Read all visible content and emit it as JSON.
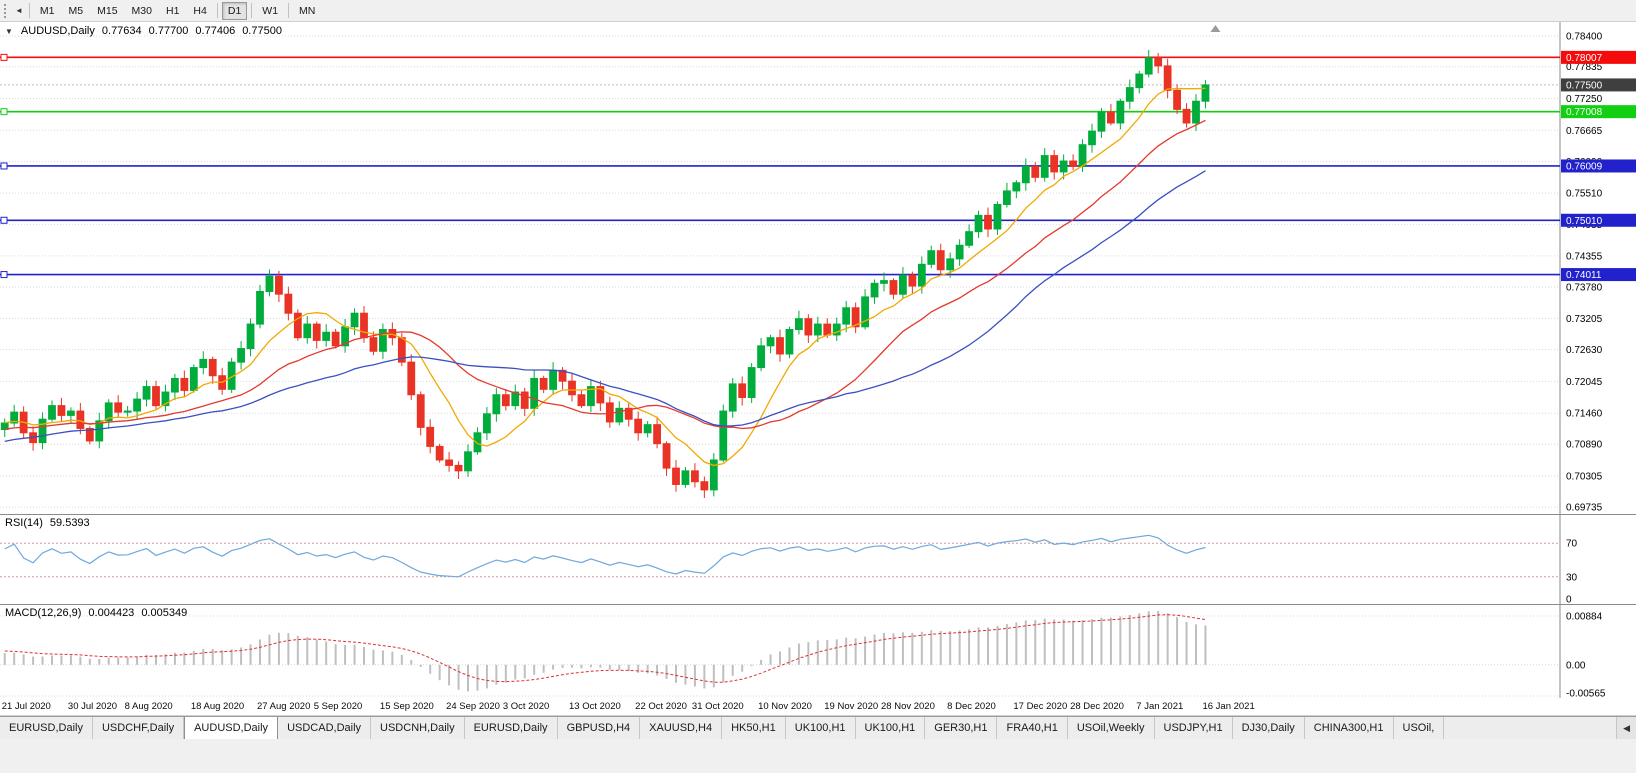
{
  "icons": {
    "collapse": "▼",
    "tab_scroll": "◀",
    "toolbar_scroll": "◄"
  },
  "toolbar": {
    "timeframes": [
      {
        "label": "M1",
        "active": false
      },
      {
        "label": "M5",
        "active": false
      },
      {
        "label": "M15",
        "active": false
      },
      {
        "label": "M30",
        "active": false
      },
      {
        "label": "H1",
        "active": false
      },
      {
        "label": "H4",
        "active": false,
        "gap_after": true
      },
      {
        "label": "D1",
        "active": true,
        "gap_after": true
      },
      {
        "label": "W1",
        "active": false,
        "gap_after": true
      },
      {
        "label": "MN",
        "active": false
      }
    ]
  },
  "chart_header": {
    "symbol_period": "AUDUSD,Daily",
    "open": "0.77634",
    "high": "0.77700",
    "low": "0.77406",
    "close": "0.77500"
  },
  "price_axis": {
    "max": 0.784,
    "min": 0.69735,
    "labels": [
      "0.78400",
      "0.77835",
      "0.77250",
      "0.76665",
      "0.76090",
      "0.75510",
      "0.74935",
      "0.74355",
      "0.73780",
      "0.73205",
      "0.72630",
      "0.72045",
      "0.71460",
      "0.70890",
      "0.70305",
      "0.69735"
    ],
    "current": {
      "label": "0.77500",
      "price": 0.775,
      "bg": "#3f3f3f"
    }
  },
  "hlines": [
    {
      "price": 0.78007,
      "label": "0.78007",
      "color": "#f40b0b"
    },
    {
      "price": 0.77008,
      "label": "0.77008",
      "color": "#12cf12"
    },
    {
      "price": 0.76009,
      "label": "0.76009",
      "color": "#2222cc"
    },
    {
      "price": 0.7501,
      "label": "0.75010",
      "color": "#2222cc"
    },
    {
      "price": 0.74011,
      "label": "0.74011",
      "color": "#2222cc"
    }
  ],
  "chart_data": {
    "type": "candlestick",
    "symbol": "AUDUSD",
    "period": "Daily",
    "slots": 165,
    "colors": {
      "up": "#00ad3c",
      "down": "#e93325",
      "grid": "#d9d9d9"
    },
    "ma": [
      {
        "name": "ma-fast",
        "period": 8,
        "color": "#f2a900"
      },
      {
        "name": "ma-mid",
        "period": 20,
        "color": "#e4392e"
      },
      {
        "name": "ma-slow",
        "period": 34,
        "color": "#3a50c2"
      }
    ],
    "lead_in_closes": [
      0.686,
      0.6875,
      0.6868,
      0.6882,
      0.6895,
      0.6888,
      0.6902,
      0.6915,
      0.6908,
      0.692,
      0.6932,
      0.6925,
      0.6938,
      0.695,
      0.6942,
      0.6955,
      0.6968,
      0.696,
      0.6972,
      0.6985,
      0.6978,
      0.699,
      0.7002,
      0.6995,
      0.7008,
      0.702,
      0.7012,
      0.7025,
      0.7038,
      0.703,
      0.7042,
      0.7055,
      0.7048,
      0.706,
      0.7072,
      0.7065,
      0.7078,
      0.709,
      0.7082,
      0.7095,
      0.7088,
      0.71,
      0.7092,
      0.7105,
      0.7098,
      0.711,
      0.7102,
      0.7115,
      0.7108,
      0.712,
      0.7112,
      0.7125,
      0.7118,
      0.7128,
      0.7122,
      0.7132,
      0.7125,
      0.7135,
      0.7128,
      0.713
    ],
    "closes": [
      0.7128,
      0.7148,
      0.711,
      0.7092,
      0.7135,
      0.716,
      0.7142,
      0.715,
      0.7118,
      0.7095,
      0.7132,
      0.7165,
      0.7148,
      0.715,
      0.7172,
      0.7195,
      0.716,
      0.7185,
      0.721,
      0.7188,
      0.723,
      0.7245,
      0.7215,
      0.719,
      0.724,
      0.7265,
      0.731,
      0.737,
      0.7398,
      0.7365,
      0.733,
      0.7285,
      0.731,
      0.728,
      0.7295,
      0.727,
      0.7305,
      0.733,
      0.7285,
      0.726,
      0.73,
      0.7285,
      0.724,
      0.718,
      0.712,
      0.7085,
      0.706,
      0.705,
      0.704,
      0.7075,
      0.711,
      0.7145,
      0.718,
      0.716,
      0.7185,
      0.7155,
      0.721,
      0.719,
      0.7225,
      0.7205,
      0.718,
      0.716,
      0.7195,
      0.7165,
      0.713,
      0.7155,
      0.7135,
      0.711,
      0.7125,
      0.709,
      0.7045,
      0.7015,
      0.704,
      0.702,
      0.7005,
      0.706,
      0.715,
      0.72,
      0.7175,
      0.723,
      0.727,
      0.7285,
      0.7255,
      0.73,
      0.732,
      0.729,
      0.731,
      0.729,
      0.731,
      0.734,
      0.7305,
      0.736,
      0.7385,
      0.739,
      0.7365,
      0.74,
      0.738,
      0.742,
      0.7445,
      0.741,
      0.743,
      0.7455,
      0.748,
      0.751,
      0.7485,
      0.753,
      0.7555,
      0.757,
      0.76,
      0.758,
      0.762,
      0.759,
      0.761,
      0.76,
      0.764,
      0.7665,
      0.77,
      0.768,
      0.772,
      0.7745,
      0.777,
      0.78,
      0.7785,
      0.774,
      0.7705,
      0.768,
      0.772,
      0.775
    ],
    "x_labels": [
      {
        "text": "21 Jul 2020",
        "candle": 0
      },
      {
        "text": "30 Jul 2020",
        "candle": 7
      },
      {
        "text": "8 Aug 2020",
        "candle": 13
      },
      {
        "text": "18 Aug 2020",
        "candle": 20
      },
      {
        "text": "27 Aug 2020",
        "candle": 27
      },
      {
        "text": "5 Sep 2020",
        "candle": 33
      },
      {
        "text": "15 Sep 2020",
        "candle": 40
      },
      {
        "text": "24 Sep 2020",
        "candle": 47
      },
      {
        "text": "3 Oct 2020",
        "candle": 53
      },
      {
        "text": "13 Oct 2020",
        "candle": 60
      },
      {
        "text": "22 Oct 2020",
        "candle": 67
      },
      {
        "text": "31 Oct 2020",
        "candle": 73
      },
      {
        "text": "10 Nov 2020",
        "candle": 80
      },
      {
        "text": "19 Nov 2020",
        "candle": 87
      },
      {
        "text": "28 Nov 2020",
        "candle": 93
      },
      {
        "text": "8 Dec 2020",
        "candle": 100
      },
      {
        "text": "17 Dec 2020",
        "candle": 107
      },
      {
        "text": "28 Dec 2020",
        "candle": 113
      },
      {
        "text": "7 Jan 2021",
        "candle": 120
      },
      {
        "text": "16 Jan 2021",
        "candle": 127
      }
    ]
  },
  "rsi": {
    "name": "RSI(14)",
    "value": "59.5393",
    "period": 14,
    "range": [
      0,
      100
    ],
    "levels": [
      70,
      30
    ],
    "axis_labels": [
      "70",
      "30",
      "0"
    ],
    "color": "#6fa8dc",
    "level_color": "#d49a9a"
  },
  "macd": {
    "name": "MACD(12,26,9)",
    "macd_value": "0.004423",
    "signal_value": "0.005349",
    "fast": 12,
    "slow": 26,
    "signal": 9,
    "max": 0.00884,
    "min": -0.00565,
    "axis_labels": [
      "0.00884",
      "0.00",
      "-0.00565"
    ],
    "hist_color": "#bfbfbf",
    "signal_color": "#e03131"
  },
  "tabs": {
    "items": [
      {
        "label": "EURUSD,Daily",
        "active": false
      },
      {
        "label": "USDCHF,Daily",
        "active": false
      },
      {
        "label": "AUDUSD,Daily",
        "active": true
      },
      {
        "label": "USDCAD,Daily",
        "active": false
      },
      {
        "label": "USDCNH,Daily",
        "active": false
      },
      {
        "label": "EURUSD,Daily",
        "active": false
      },
      {
        "label": "GBPUSD,H4",
        "active": false
      },
      {
        "label": "XAUUSD,H4",
        "active": false
      },
      {
        "label": "HK50,H1",
        "active": false
      },
      {
        "label": "UK100,H1",
        "active": false
      },
      {
        "label": "UK100,H1",
        "active": false
      },
      {
        "label": "GER30,H1",
        "active": false
      },
      {
        "label": "FRA40,H1",
        "active": false
      },
      {
        "label": "USOil,Weekly",
        "active": false
      },
      {
        "label": "USDJPY,H1",
        "active": false
      },
      {
        "label": "DJ30,Daily",
        "active": false
      },
      {
        "label": "CHINA300,H1",
        "active": false
      },
      {
        "label": "USOil,",
        "active": false
      }
    ]
  }
}
